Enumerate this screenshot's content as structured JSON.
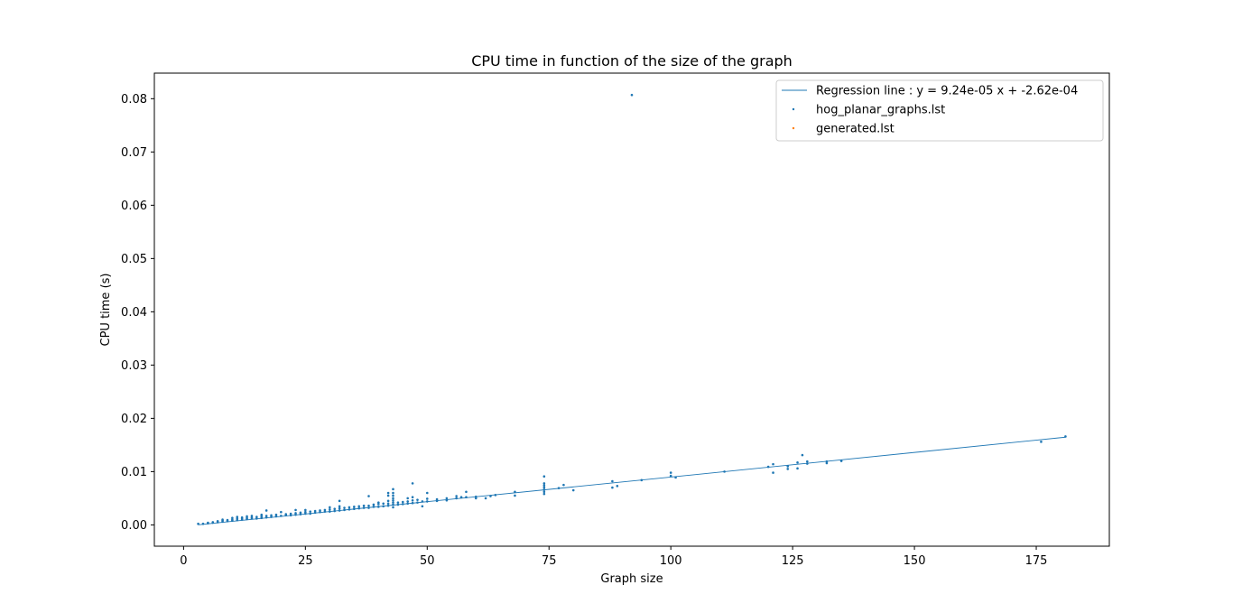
{
  "chart_data": {
    "type": "scatter",
    "title": "CPU time in function of the size of the graph",
    "xlabel": "Graph size",
    "ylabel": "CPU time (s)",
    "xlim": [
      -6,
      190
    ],
    "ylim": [
      -0.004,
      0.0848
    ],
    "xticks": [
      0,
      25,
      50,
      75,
      100,
      125,
      150,
      175
    ],
    "yticks": [
      0.0,
      0.01,
      0.02,
      0.03,
      0.04,
      0.05,
      0.06,
      0.07,
      0.08
    ],
    "ytick_labels": [
      "0.00",
      "0.01",
      "0.02",
      "0.03",
      "0.04",
      "0.05",
      "0.06",
      "0.07",
      "0.08"
    ],
    "grid": false,
    "legend_position": "top-right",
    "regression": {
      "label": "Regression line : y = 9.24e-05 x  + -2.62e-04",
      "slope": 9.24e-05,
      "intercept": -0.000262,
      "x_range": [
        3,
        181
      ],
      "color": "#1f77b4"
    },
    "series": [
      {
        "name": "hog_planar_graphs.lst",
        "color": "#1f77b4",
        "points": [
          [
            3,
            0.0002
          ],
          [
            4,
            0.0002
          ],
          [
            5,
            0.0003
          ],
          [
            5,
            0.0004
          ],
          [
            6,
            0.0004
          ],
          [
            6,
            0.0005
          ],
          [
            7,
            0.0005
          ],
          [
            7,
            0.0007
          ],
          [
            8,
            0.0006
          ],
          [
            8,
            0.0008
          ],
          [
            8,
            0.001
          ],
          [
            9,
            0.0007
          ],
          [
            9,
            0.0009
          ],
          [
            10,
            0.0008
          ],
          [
            10,
            0.001
          ],
          [
            10,
            0.0013
          ],
          [
            11,
            0.0009
          ],
          [
            11,
            0.0012
          ],
          [
            11,
            0.0015
          ],
          [
            12,
            0.001
          ],
          [
            12,
            0.0012
          ],
          [
            12,
            0.0014
          ],
          [
            13,
            0.0011
          ],
          [
            13,
            0.0013
          ],
          [
            13,
            0.0016
          ],
          [
            14,
            0.0012
          ],
          [
            14,
            0.0014
          ],
          [
            14,
            0.0017
          ],
          [
            15,
            0.0012
          ],
          [
            15,
            0.0015
          ],
          [
            16,
            0.0013
          ],
          [
            16,
            0.0016
          ],
          [
            16,
            0.0019
          ],
          [
            17,
            0.0014
          ],
          [
            17,
            0.0017
          ],
          [
            17,
            0.0027
          ],
          [
            18,
            0.0015
          ],
          [
            18,
            0.0018
          ],
          [
            19,
            0.0016
          ],
          [
            19,
            0.0019
          ],
          [
            20,
            0.0017
          ],
          [
            20,
            0.0024
          ],
          [
            21,
            0.0018
          ],
          [
            21,
            0.002
          ],
          [
            22,
            0.0018
          ],
          [
            22,
            0.0021
          ],
          [
            23,
            0.0019
          ],
          [
            23,
            0.0022
          ],
          [
            23,
            0.0028
          ],
          [
            24,
            0.002
          ],
          [
            24,
            0.0023
          ],
          [
            25,
            0.0021
          ],
          [
            25,
            0.0024
          ],
          [
            25,
            0.0028
          ],
          [
            26,
            0.0021
          ],
          [
            26,
            0.0025
          ],
          [
            27,
            0.0023
          ],
          [
            27,
            0.0026
          ],
          [
            28,
            0.0024
          ],
          [
            28,
            0.0027
          ],
          [
            29,
            0.0025
          ],
          [
            29,
            0.0028
          ],
          [
            30,
            0.0025
          ],
          [
            30,
            0.0029
          ],
          [
            30,
            0.0033
          ],
          [
            31,
            0.0026
          ],
          [
            31,
            0.003
          ],
          [
            32,
            0.0027
          ],
          [
            32,
            0.0031
          ],
          [
            32,
            0.0035
          ],
          [
            32,
            0.0045
          ],
          [
            33,
            0.0028
          ],
          [
            33,
            0.0032
          ],
          [
            34,
            0.0029
          ],
          [
            34,
            0.0033
          ],
          [
            35,
            0.003
          ],
          [
            35,
            0.0034
          ],
          [
            36,
            0.0031
          ],
          [
            36,
            0.0035
          ],
          [
            37,
            0.0032
          ],
          [
            37,
            0.0036
          ],
          [
            38,
            0.0032
          ],
          [
            38,
            0.0036
          ],
          [
            38,
            0.0054
          ],
          [
            39,
            0.0034
          ],
          [
            39,
            0.0038
          ],
          [
            40,
            0.0034
          ],
          [
            40,
            0.0039
          ],
          [
            40,
            0.0042
          ],
          [
            41,
            0.0035
          ],
          [
            41,
            0.004
          ],
          [
            42,
            0.0036
          ],
          [
            42,
            0.004
          ],
          [
            42,
            0.0045
          ],
          [
            42,
            0.0055
          ],
          [
            42,
            0.006
          ],
          [
            43,
            0.0033
          ],
          [
            43,
            0.0038
          ],
          [
            43,
            0.0042
          ],
          [
            43,
            0.0046
          ],
          [
            43,
            0.005
          ],
          [
            43,
            0.0055
          ],
          [
            43,
            0.006
          ],
          [
            43,
            0.0067
          ],
          [
            44,
            0.0038
          ],
          [
            44,
            0.0042
          ],
          [
            45,
            0.0039
          ],
          [
            45,
            0.0043
          ],
          [
            46,
            0.004
          ],
          [
            46,
            0.0044
          ],
          [
            46,
            0.005
          ],
          [
            47,
            0.0041
          ],
          [
            47,
            0.0046
          ],
          [
            47,
            0.0052
          ],
          [
            47,
            0.0078
          ],
          [
            48,
            0.0042
          ],
          [
            48,
            0.0047
          ],
          [
            49,
            0.0035
          ],
          [
            49,
            0.0044
          ],
          [
            50,
            0.0044
          ],
          [
            50,
            0.0049
          ],
          [
            50,
            0.006
          ],
          [
            52,
            0.0045
          ],
          [
            52,
            0.0048
          ],
          [
            54,
            0.0046
          ],
          [
            54,
            0.005
          ],
          [
            56,
            0.005
          ],
          [
            56,
            0.0054
          ],
          [
            57,
            0.0052
          ],
          [
            58,
            0.0052
          ],
          [
            58,
            0.0062
          ],
          [
            60,
            0.005
          ],
          [
            60,
            0.0053
          ],
          [
            62,
            0.005
          ],
          [
            63,
            0.0054
          ],
          [
            64,
            0.0056
          ],
          [
            68,
            0.0055
          ],
          [
            68,
            0.0062
          ],
          [
            74,
            0.0058
          ],
          [
            74,
            0.0062
          ],
          [
            74,
            0.0066
          ],
          [
            74,
            0.007
          ],
          [
            74,
            0.0074
          ],
          [
            74,
            0.0078
          ],
          [
            74,
            0.0091
          ],
          [
            77,
            0.0069
          ],
          [
            78,
            0.0075
          ],
          [
            80,
            0.0065
          ],
          [
            88,
            0.007
          ],
          [
            88,
            0.0082
          ],
          [
            89,
            0.0073
          ],
          [
            92,
            0.0807
          ],
          [
            94,
            0.0084
          ],
          [
            100,
            0.0092
          ],
          [
            100,
            0.0098
          ],
          [
            101,
            0.0089
          ],
          [
            111,
            0.01
          ],
          [
            120,
            0.0109
          ],
          [
            121,
            0.0098
          ],
          [
            121,
            0.0114
          ],
          [
            124,
            0.0105
          ],
          [
            124,
            0.011
          ],
          [
            126,
            0.0106
          ],
          [
            126,
            0.0117
          ],
          [
            127,
            0.0131
          ],
          [
            128,
            0.0115
          ],
          [
            128,
            0.0119
          ],
          [
            132,
            0.0116
          ],
          [
            132,
            0.0119
          ],
          [
            135,
            0.012
          ],
          [
            176,
            0.0156
          ],
          [
            181,
            0.0166
          ]
        ]
      },
      {
        "name": "generated.lst",
        "color": "#ff7f0e",
        "points": []
      }
    ]
  }
}
